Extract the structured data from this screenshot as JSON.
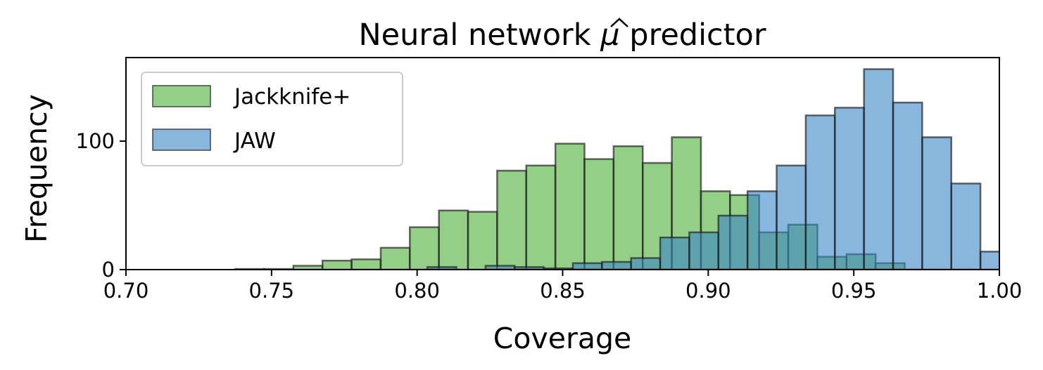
{
  "chart_data": {
    "type": "bar",
    "title": "Neural network μ̂ predictor",
    "title_parts": {
      "before": "Neural network ",
      "symbol": "μ",
      "after": " predictor"
    },
    "xlabel": "Coverage",
    "ylabel": "Frequency",
    "xlim": [
      0.7,
      1.0
    ],
    "ylim": [
      0,
      165
    ],
    "xticks": [
      0.7,
      0.75,
      0.8,
      0.85,
      0.9,
      0.95,
      1.0
    ],
    "xtick_labels": [
      "0.70",
      "0.75",
      "0.80",
      "0.85",
      "0.90",
      "0.95",
      "1.00"
    ],
    "yticks": [
      0,
      100
    ],
    "ytick_labels": [
      "0",
      "100"
    ],
    "grid": false,
    "legend_position": "top-left",
    "series": [
      {
        "name": "Jackknife+",
        "color": "#66bb55",
        "bins": [
          {
            "x0": 0.7375,
            "x1": 0.7475,
            "value": 0.5
          },
          {
            "x0": 0.7475,
            "x1": 0.7575,
            "value": 0.5
          },
          {
            "x0": 0.7575,
            "x1": 0.7675,
            "value": 3
          },
          {
            "x0": 0.7675,
            "x1": 0.7775,
            "value": 7
          },
          {
            "x0": 0.7775,
            "x1": 0.7875,
            "value": 8
          },
          {
            "x0": 0.7875,
            "x1": 0.7975,
            "value": 17
          },
          {
            "x0": 0.7975,
            "x1": 0.8075,
            "value": 33
          },
          {
            "x0": 0.8075,
            "x1": 0.8175,
            "value": 46
          },
          {
            "x0": 0.8175,
            "x1": 0.8275,
            "value": 45
          },
          {
            "x0": 0.8275,
            "x1": 0.8375,
            "value": 77
          },
          {
            "x0": 0.8375,
            "x1": 0.8475,
            "value": 81
          },
          {
            "x0": 0.8475,
            "x1": 0.8575,
            "value": 98
          },
          {
            "x0": 0.8575,
            "x1": 0.8675,
            "value": 86
          },
          {
            "x0": 0.8675,
            "x1": 0.8775,
            "value": 96
          },
          {
            "x0": 0.8775,
            "x1": 0.8875,
            "value": 83
          },
          {
            "x0": 0.8875,
            "x1": 0.8975,
            "value": 103
          },
          {
            "x0": 0.8975,
            "x1": 0.9075,
            "value": 61
          },
          {
            "x0": 0.9075,
            "x1": 0.9175,
            "value": 58
          },
          {
            "x0": 0.9175,
            "x1": 0.9275,
            "value": 29
          },
          {
            "x0": 0.9275,
            "x1": 0.9375,
            "value": 35
          },
          {
            "x0": 0.9375,
            "x1": 0.9475,
            "value": 10
          },
          {
            "x0": 0.9475,
            "x1": 0.9575,
            "value": 12
          },
          {
            "x0": 0.9575,
            "x1": 0.9675,
            "value": 5
          }
        ]
      },
      {
        "name": "JAW",
        "color": "#3a86c4",
        "bins": [
          {
            "x0": 0.8035,
            "x1": 0.8135,
            "value": 2
          },
          {
            "x0": 0.8235,
            "x1": 0.8335,
            "value": 3
          },
          {
            "x0": 0.8335,
            "x1": 0.8435,
            "value": 2
          },
          {
            "x0": 0.8435,
            "x1": 0.8535,
            "value": 1
          },
          {
            "x0": 0.8535,
            "x1": 0.8635,
            "value": 5
          },
          {
            "x0": 0.8635,
            "x1": 0.8735,
            "value": 6
          },
          {
            "x0": 0.8735,
            "x1": 0.8835,
            "value": 9
          },
          {
            "x0": 0.8835,
            "x1": 0.8935,
            "value": 25
          },
          {
            "x0": 0.8935,
            "x1": 0.9035,
            "value": 29
          },
          {
            "x0": 0.9035,
            "x1": 0.9135,
            "value": 42
          },
          {
            "x0": 0.9135,
            "x1": 0.9235,
            "value": 61
          },
          {
            "x0": 0.9235,
            "x1": 0.9335,
            "value": 81
          },
          {
            "x0": 0.9335,
            "x1": 0.9435,
            "value": 120
          },
          {
            "x0": 0.9435,
            "x1": 0.9535,
            "value": 126
          },
          {
            "x0": 0.9535,
            "x1": 0.9635,
            "value": 156
          },
          {
            "x0": 0.9635,
            "x1": 0.9735,
            "value": 130
          },
          {
            "x0": 0.9735,
            "x1": 0.9835,
            "value": 103
          },
          {
            "x0": 0.9835,
            "x1": 0.9935,
            "value": 67
          },
          {
            "x0": 0.9935,
            "x1": 1.0035,
            "value": 14
          }
        ]
      }
    ]
  }
}
